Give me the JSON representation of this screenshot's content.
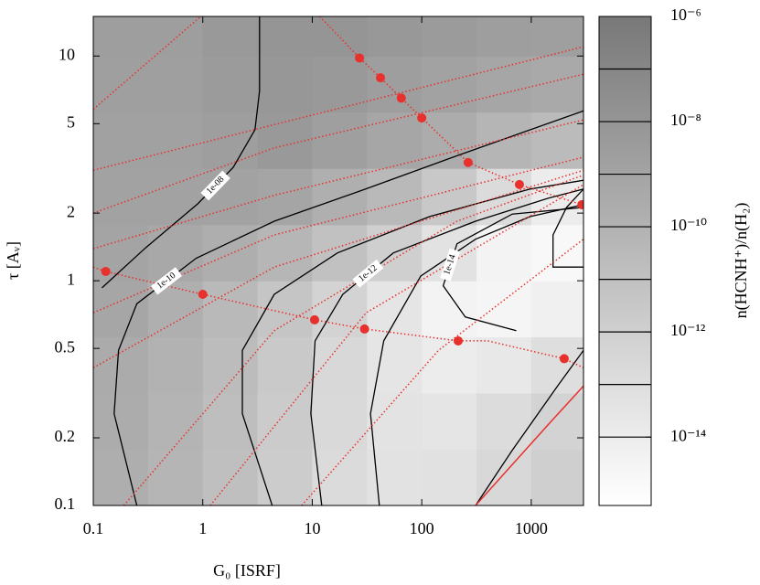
{
  "chart_data": {
    "type": "contour",
    "xlabel": "G₀ [ISRF]",
    "ylabel": "τ [Aᵥ]",
    "xscale": "log",
    "yscale": "log",
    "xlim": [
      0.1,
      3000
    ],
    "ylim": [
      0.1,
      15
    ],
    "xticks": [
      0.1,
      1,
      10,
      100,
      1000
    ],
    "yticks": [
      0.1,
      0.2,
      0.5,
      1,
      2,
      5,
      10
    ],
    "heatmap": {
      "x": [
        0.178,
        0.562,
        1.78,
        5.62,
        17.8,
        56.2,
        178,
        562,
        1780
      ],
      "y": [
        0.133,
        0.237,
        0.422,
        0.75,
        1.33,
        2.37,
        4.22,
        7.5,
        13.3
      ],
      "z": [
        [
          2e-10,
          6.3e-11,
          1.3e-11,
          1.6e-12,
          1.6e-13,
          5e-14,
          6.3e-14,
          2.5e-13,
          1e-12
        ],
        [
          2.5e-10,
          7.9e-11,
          1.6e-11,
          2e-12,
          2e-13,
          4e-14,
          3.2e-14,
          1.3e-13,
          5e-13
        ],
        [
          3.2e-10,
          1e-10,
          2e-11,
          2.5e-12,
          2.5e-13,
          3.2e-14,
          1e-14,
          2e-14,
          1e-13
        ],
        [
          6.3e-10,
          1.6e-10,
          3.2e-11,
          5e-12,
          5e-13,
          3.2e-14,
          3.2e-15,
          2.5e-15,
          5e-15
        ],
        [
          1e-09,
          5e-10,
          2e-10,
          5e-11,
          1e-11,
          1e-12,
          5e-14,
          3.2e-15,
          1.6e-15
        ],
        [
          1.3e-09,
          1.3e-09,
          1.3e-09,
          7.9e-10,
          1.6e-10,
          3.2e-11,
          3.2e-12,
          1.6e-13,
          1e-14
        ],
        [
          1.6e-09,
          1.6e-09,
          2.5e-09,
          5e-09,
          2e-09,
          6.3e-10,
          2.5e-10,
          6.3e-11,
          2.5e-11
        ],
        [
          2e-09,
          2e-09,
          4e-09,
          7.9e-09,
          5e-09,
          2.5e-09,
          1.3e-09,
          6.3e-10,
          4e-10
        ],
        [
          2.5e-09,
          2.5e-09,
          5e-09,
          1e-08,
          1e-08,
          6.3e-09,
          4e-09,
          2.5e-09,
          2e-09
        ]
      ]
    },
    "colorbar": {
      "label": "n(HCNH⁺)/n(H₂)",
      "lim": [
        5e-16,
        1e-06
      ],
      "ticks": [
        {
          "value": 1e-06,
          "label": "10⁻⁶"
        },
        {
          "value": 1e-08,
          "label": "10⁻⁸"
        },
        {
          "value": 1e-10,
          "label": "10⁻¹⁰"
        },
        {
          "value": 1e-12,
          "label": "10⁻¹²"
        },
        {
          "value": 1e-14,
          "label": "10⁻¹⁴"
        }
      ],
      "levels": [
        1e-07,
        1e-08,
        1e-09,
        1e-10,
        1e-11,
        1e-12,
        1e-13,
        1e-14
      ]
    },
    "contours": [
      {
        "level": 1e-08,
        "label": "1e-08",
        "x": [
          0.12,
          0.3,
          0.9,
          1.9,
          3,
          3.3,
          3.3
        ],
        "y": [
          0.93,
          1.4,
          2.2,
          3.2,
          4.7,
          7,
          15
        ]
      },
      {
        "level": 1e-10,
        "label": "1e-10",
        "x": [
          0.25,
          0.155,
          0.17,
          0.25,
          0.87,
          4.5,
          30.7,
          210,
          3000
        ],
        "y": [
          0.1,
          0.256,
          0.49,
          0.79,
          1.26,
          1.84,
          2.56,
          3.6,
          5.7
        ]
      },
      {
        "level": 1e-11,
        "x": [
          4.3,
          2.3,
          2.3,
          4.5,
          17,
          118,
          980,
          3000
        ],
        "y": [
          0.1,
          0.256,
          0.49,
          0.87,
          1.33,
          1.93,
          2.56,
          2.8
        ]
      },
      {
        "level": 1e-12,
        "label": "1e-12",
        "x": [
          12.2,
          9.7,
          10.6,
          19,
          55,
          310,
          1440,
          3000
        ],
        "y": [
          0.1,
          0.256,
          0.54,
          0.87,
          1.33,
          1.84,
          2.33,
          2.56
        ]
      },
      {
        "level": 1e-13,
        "x": [
          41,
          34,
          45,
          98,
          310,
          980,
          3000
        ],
        "y": [
          0.1,
          0.256,
          0.54,
          1.05,
          1.53,
          1.93,
          2.18
        ]
      },
      {
        "level": 1e-14,
        "label": "1e-14",
        "x": [
          730,
          250,
          157,
          210,
          670,
          3000
        ],
        "y": [
          0.6,
          0.69,
          0.95,
          1.46,
          1.98,
          2.12
        ]
      },
      {
        "level": 1e-14,
        "x": [
          3000,
          1580,
          1580,
          2100,
          3000
        ],
        "y": [
          1.15,
          1.15,
          1.6,
          2.12,
          2.56
        ]
      },
      {
        "level": 1e-11,
        "x": [
          310,
          670,
          1740,
          3000
        ],
        "y": [
          0.1,
          0.176,
          0.34,
          0.49
        ]
      }
    ],
    "series": [
      {
        "color": "#e8302c",
        "linestyle": "dotted",
        "x": [
          0.1,
          0.96
        ],
        "y": [
          5.8,
          15
        ]
      },
      {
        "color": "#e8302c",
        "linestyle": "dotted",
        "x": [
          0.1,
          3000
        ],
        "y": [
          3.1,
          11
        ]
      },
      {
        "color": "#e8302c",
        "linestyle": "dotted",
        "x": [
          0.1,
          4.5,
          3000
        ],
        "y": [
          2.0,
          3.9,
          8.3
        ]
      },
      {
        "color": "#e8302c",
        "linestyle": "dotted",
        "x": [
          0.1,
          4.5,
          3000
        ],
        "y": [
          1.39,
          2.4,
          5.2
        ]
      },
      {
        "color": "#e8302c",
        "linestyle": "dotted",
        "x": [
          0.1,
          4.5,
          3000
        ],
        "y": [
          0.72,
          1.6,
          3.55
        ]
      },
      {
        "color": "#e8302c",
        "linestyle": "dotted",
        "x": [
          0.1,
          4.5,
          3000
        ],
        "y": [
          0.41,
          1.15,
          3.1
        ]
      },
      {
        "color": "#e8302c",
        "linestyle": "dotted",
        "x": [
          0.19,
          4.5,
          210,
          3000
        ],
        "y": [
          0.1,
          0.6,
          1.84,
          2.95
        ]
      },
      {
        "color": "#e8302c",
        "linestyle": "dotted",
        "x": [
          1.17,
          31,
          3000
        ],
        "y": [
          0.1,
          0.72,
          2.68
        ]
      },
      {
        "color": "#e8302c",
        "linestyle": "dotted",
        "x": [
          8,
          142,
          3000
        ],
        "y": [
          0.1,
          0.49,
          1.53
        ]
      },
      {
        "color": "#e8302c",
        "linestyle": "dotted",
        "x": [
          0.1,
          0.13,
          1,
          10.5,
          30,
          215,
          400,
          2000,
          3000
        ],
        "y": [
          1.15,
          1.1,
          0.87,
          0.67,
          0.61,
          0.54,
          0.54,
          0.45,
          0.41
        ]
      },
      {
        "color": "#e8302c",
        "linestyle": "dotted",
        "x": [
          11.7,
          27,
          42,
          65,
          100,
          265,
          780,
          2900
        ],
        "y": [
          15,
          9.8,
          8,
          6.5,
          5.3,
          3.36,
          2.68,
          2.18
        ]
      },
      {
        "color": "#e8302c",
        "linestyle": "solid",
        "x": [
          310,
          1440,
          3000
        ],
        "y": [
          0.1,
          0.23,
          0.34
        ]
      }
    ],
    "points": {
      "color": "#e8302c",
      "x": [
        0.13,
        1,
        10.5,
        30,
        215,
        2000,
        27,
        42,
        65,
        100,
        265,
        780,
        2900
      ],
      "y": [
        1.1,
        0.87,
        0.67,
        0.61,
        0.54,
        0.45,
        9.8,
        8,
        6.5,
        5.3,
        3.36,
        2.68,
        2.18
      ]
    }
  }
}
